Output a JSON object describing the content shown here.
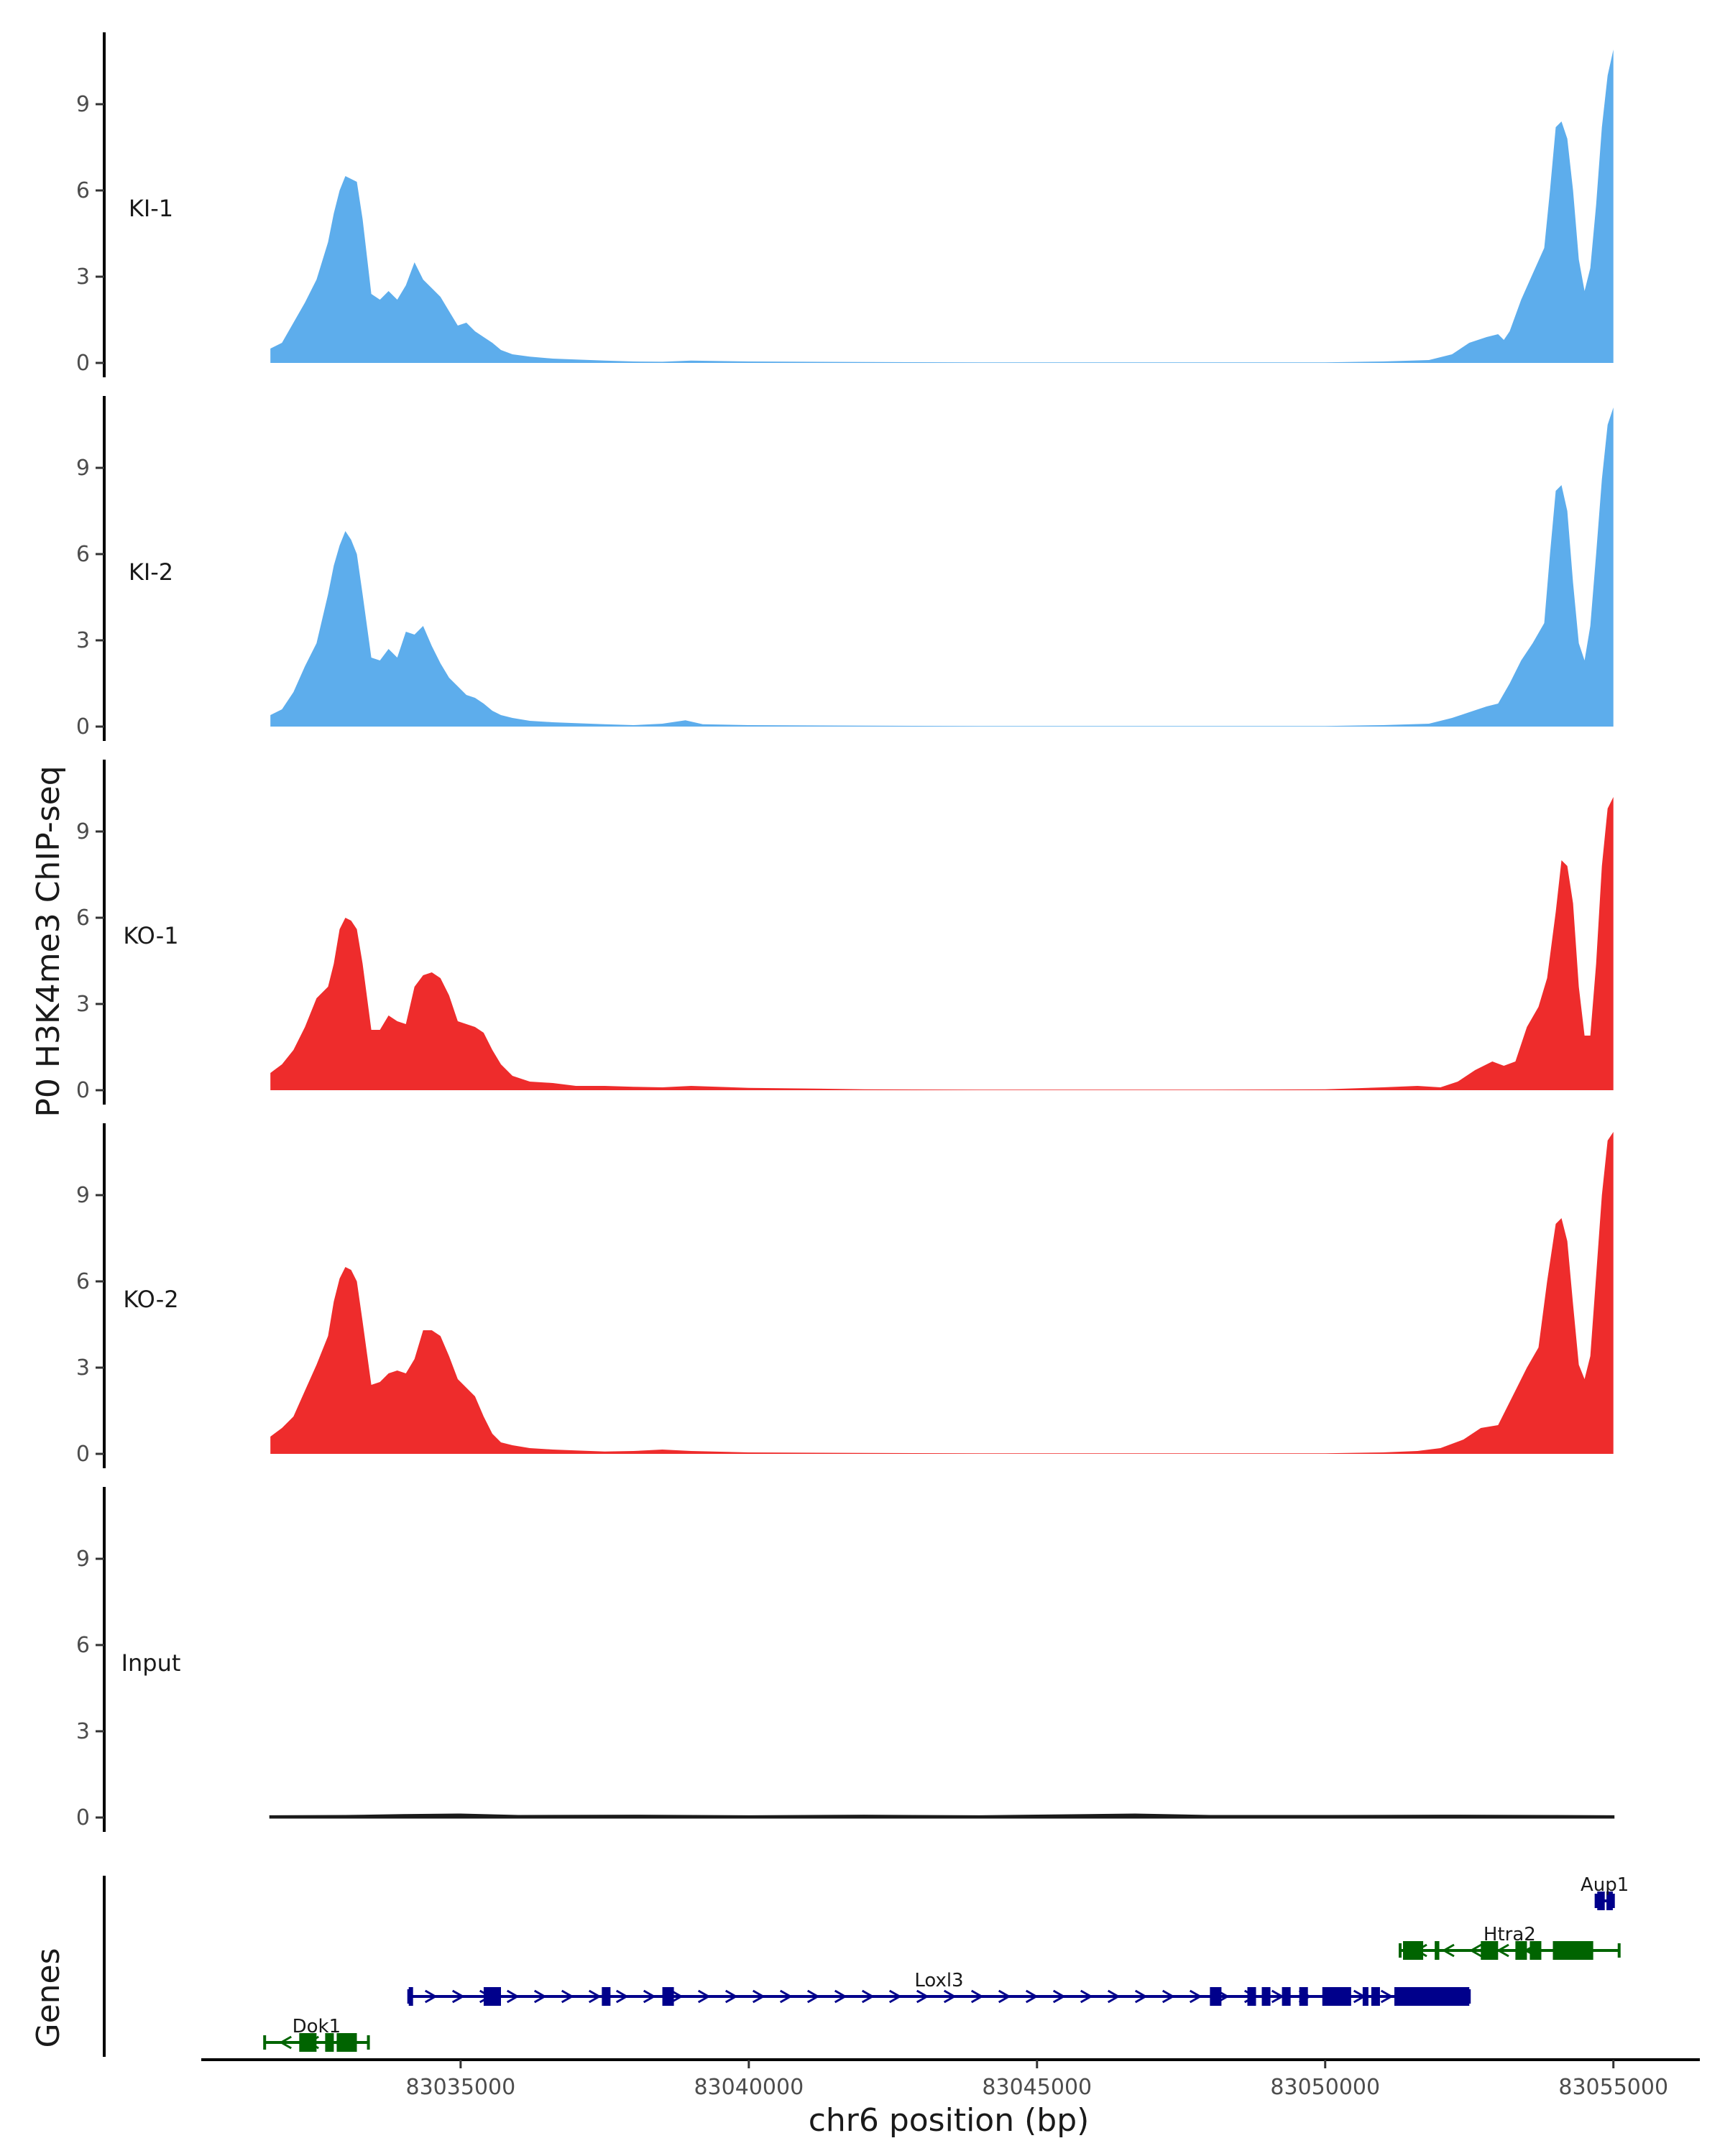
{
  "chart_data": {
    "type": "area",
    "xlabel": "chr6 position (bp)",
    "ylabel": "P0 H3K4me3 ChIP-seq",
    "genes_label": "Genes",
    "xlim": [
      83030500,
      83056500
    ],
    "x_ticks": [
      83035000,
      83040000,
      83045000,
      83050000,
      83055000
    ],
    "x_tick_labels": [
      "83035000",
      "83040000",
      "83045000",
      "83050000",
      "83055000"
    ],
    "ylim": [
      0,
      11.5
    ],
    "y_ticks": [
      0,
      3,
      6,
      9
    ],
    "y_tick_labels": [
      "0",
      "3",
      "6",
      "9"
    ],
    "colors": {
      "KI": "#5dadec",
      "KO": "#ee2c2c",
      "Input": "#1a1a1a",
      "gene_plus": "#00008b",
      "gene_minus": "#006400"
    },
    "tracks": [
      {
        "name": "KI-1",
        "color": "#5dadec",
        "x": [
          83031700,
          83031900,
          83032100,
          83032300,
          83032500,
          83032700,
          83032800,
          83032900,
          83033000,
          83033100,
          83033200,
          83033300,
          83033450,
          83033600,
          83033750,
          83033900,
          83034050,
          83034200,
          83034350,
          83034500,
          83034650,
          83034800,
          83034950,
          83035100,
          83035250,
          83035400,
          83035550,
          83035700,
          83035900,
          83036200,
          83036600,
          83037000,
          83037500,
          83038000,
          83038500,
          83039000,
          83040000,
          83042000,
          83044000,
          83046000,
          83048000,
          83050000,
          83051000,
          83051800,
          83052200,
          83052500,
          83052800,
          83053000,
          83053100,
          83053200,
          83053400,
          83053600,
          83053800,
          83053900,
          83054000,
          83054100,
          83054200,
          83054300,
          83054400,
          83054500,
          83054600,
          83054700,
          83054800,
          83054900,
          83055000
        ],
        "values": [
          0.5,
          0.7,
          1.4,
          2.1,
          2.9,
          4.2,
          5.2,
          6.0,
          6.5,
          6.4,
          6.3,
          5.0,
          2.4,
          2.2,
          2.5,
          2.2,
          2.7,
          3.5,
          2.9,
          2.6,
          2.3,
          1.8,
          1.3,
          1.4,
          1.1,
          0.9,
          0.7,
          0.45,
          0.3,
          0.22,
          0.15,
          0.12,
          0.08,
          0.05,
          0.04,
          0.08,
          0.05,
          0.03,
          0.02,
          0.02,
          0.02,
          0.02,
          0.05,
          0.1,
          0.3,
          0.7,
          0.9,
          1.0,
          0.8,
          1.1,
          2.2,
          3.1,
          4.0,
          6.0,
          8.2,
          8.4,
          7.8,
          6.0,
          3.6,
          2.5,
          3.3,
          5.5,
          8.2,
          10.0,
          10.9
        ]
      },
      {
        "name": "KI-2",
        "color": "#5dadec",
        "x": [
          83031700,
          83031900,
          83032100,
          83032300,
          83032500,
          83032700,
          83032800,
          83032900,
          83033000,
          83033100,
          83033200,
          83033300,
          83033450,
          83033600,
          83033750,
          83033900,
          83034050,
          83034200,
          83034350,
          83034500,
          83034650,
          83034800,
          83034950,
          83035100,
          83035250,
          83035400,
          83035550,
          83035700,
          83035900,
          83036200,
          83036600,
          83037000,
          83037500,
          83038000,
          83038500,
          83038900,
          83039200,
          83040000,
          83042000,
          83044000,
          83046000,
          83048000,
          83050000,
          83051000,
          83051800,
          83052200,
          83052500,
          83052800,
          83053000,
          83053200,
          83053400,
          83053600,
          83053800,
          83053900,
          83054000,
          83054100,
          83054200,
          83054300,
          83054400,
          83054500,
          83054600,
          83054700,
          83054800,
          83054900,
          83055000
        ],
        "values": [
          0.4,
          0.6,
          1.2,
          2.1,
          2.9,
          4.6,
          5.6,
          6.3,
          6.8,
          6.5,
          6.0,
          4.6,
          2.4,
          2.3,
          2.7,
          2.4,
          3.3,
          3.2,
          3.5,
          2.8,
          2.2,
          1.7,
          1.4,
          1.1,
          1.0,
          0.8,
          0.55,
          0.4,
          0.3,
          0.2,
          0.15,
          0.12,
          0.08,
          0.05,
          0.1,
          0.22,
          0.08,
          0.05,
          0.03,
          0.02,
          0.02,
          0.02,
          0.02,
          0.05,
          0.1,
          0.3,
          0.5,
          0.7,
          0.8,
          1.5,
          2.3,
          2.9,
          3.6,
          6.0,
          8.2,
          8.4,
          7.5,
          5.0,
          2.9,
          2.3,
          3.5,
          6.0,
          8.6,
          10.5,
          11.1
        ]
      },
      {
        "name": "KO-1",
        "color": "#ee2c2c",
        "x": [
          83031700,
          83031900,
          83032100,
          83032300,
          83032500,
          83032700,
          83032800,
          83032900,
          83033000,
          83033100,
          83033200,
          83033300,
          83033450,
          83033600,
          83033750,
          83033900,
          83034050,
          83034200,
          83034350,
          83034500,
          83034650,
          83034800,
          83034950,
          83035100,
          83035250,
          83035400,
          83035550,
          83035700,
          83035900,
          83036200,
          83036600,
          83037000,
          83037500,
          83038000,
          83038500,
          83039000,
          83040000,
          83041000,
          83042000,
          83044000,
          83046000,
          83048000,
          83050000,
          83051000,
          83051600,
          83052000,
          83052300,
          83052600,
          83052900,
          83053100,
          83053300,
          83053500,
          83053700,
          83053850,
          83054000,
          83054100,
          83054200,
          83054300,
          83054400,
          83054500,
          83054600,
          83054700,
          83054800,
          83054900,
          83055000
        ],
        "values": [
          0.6,
          0.9,
          1.4,
          2.2,
          3.2,
          3.6,
          4.4,
          5.6,
          6.0,
          5.9,
          5.6,
          4.4,
          2.1,
          2.1,
          2.6,
          2.4,
          2.3,
          3.6,
          4.0,
          4.1,
          3.9,
          3.3,
          2.4,
          2.3,
          2.2,
          2.0,
          1.4,
          0.9,
          0.5,
          0.3,
          0.25,
          0.15,
          0.15,
          0.12,
          0.1,
          0.15,
          0.08,
          0.06,
          0.03,
          0.02,
          0.02,
          0.02,
          0.03,
          0.1,
          0.15,
          0.1,
          0.3,
          0.7,
          1.0,
          0.85,
          1.0,
          2.2,
          2.9,
          3.9,
          6.2,
          8.0,
          7.8,
          6.5,
          3.6,
          1.9,
          1.9,
          4.4,
          7.8,
          9.8,
          10.2
        ]
      },
      {
        "name": "KO-2",
        "color": "#ee2c2c",
        "x": [
          83031700,
          83031900,
          83032100,
          83032300,
          83032500,
          83032700,
          83032800,
          83032900,
          83033000,
          83033100,
          83033200,
          83033300,
          83033450,
          83033600,
          83033750,
          83033900,
          83034050,
          83034200,
          83034350,
          83034500,
          83034650,
          83034800,
          83034950,
          83035100,
          83035250,
          83035400,
          83035550,
          83035700,
          83035900,
          83036200,
          83036600,
          83037000,
          83037500,
          83038000,
          83038500,
          83039000,
          83040000,
          83042000,
          83044000,
          83046000,
          83048000,
          83050000,
          83051000,
          83051600,
          83052000,
          83052400,
          83052700,
          83053000,
          83053300,
          83053500,
          83053700,
          83053850,
          83054000,
          83054100,
          83054200,
          83054300,
          83054400,
          83054500,
          83054600,
          83054700,
          83054800,
          83054900,
          83055000
        ],
        "values": [
          0.6,
          0.9,
          1.3,
          2.2,
          3.1,
          4.1,
          5.3,
          6.1,
          6.5,
          6.4,
          6.0,
          4.6,
          2.4,
          2.5,
          2.8,
          2.9,
          2.8,
          3.3,
          4.3,
          4.3,
          4.1,
          3.4,
          2.6,
          2.3,
          2.0,
          1.3,
          0.7,
          0.4,
          0.3,
          0.2,
          0.15,
          0.12,
          0.08,
          0.1,
          0.15,
          0.1,
          0.05,
          0.03,
          0.02,
          0.02,
          0.02,
          0.02,
          0.05,
          0.1,
          0.2,
          0.5,
          0.9,
          1.0,
          2.2,
          3.0,
          3.7,
          6.0,
          8.0,
          8.2,
          7.4,
          5.2,
          3.1,
          2.6,
          3.4,
          6.2,
          9.0,
          10.9,
          11.2
        ]
      },
      {
        "name": "Input",
        "color": "#1a1a1a",
        "x": [
          83031700,
          83033000,
          83034000,
          83035000,
          83036000,
          83038000,
          83040000,
          83042000,
          83044000,
          83046700,
          83048000,
          83050000,
          83052000,
          83054000,
          83055000
        ],
        "values": [
          0.04,
          0.05,
          0.08,
          0.1,
          0.05,
          0.06,
          0.04,
          0.06,
          0.04,
          0.1,
          0.05,
          0.05,
          0.06,
          0.05,
          0.04
        ]
      }
    ],
    "genes": [
      {
        "name": "Aup1",
        "strand": "+",
        "color": "#00008b",
        "row": 0,
        "start": 83054700,
        "end": 83055000,
        "exons": [
          [
            83054720,
            83054850
          ],
          [
            83054880,
            83054990
          ]
        ]
      },
      {
        "name": "Htra2",
        "strand": "-",
        "color": "#006400",
        "row": 1,
        "start": 83051300,
        "end": 83055100,
        "exons": [
          [
            83051350,
            83051700
          ],
          [
            83051900,
            83051980
          ],
          [
            83052700,
            83053000
          ],
          [
            83053300,
            83053500
          ],
          [
            83053550,
            83053750
          ],
          [
            83053950,
            83054650
          ]
        ]
      },
      {
        "name": "Loxl3",
        "strand": "+",
        "color": "#00008b",
        "row": 2,
        "start": 83034100,
        "end": 83052500,
        "exons": [
          [
            83034100,
            83034170
          ],
          [
            83035400,
            83035700
          ],
          [
            83037450,
            83037600
          ],
          [
            83038500,
            83038700
          ],
          [
            83048000,
            83048200
          ],
          [
            83048650,
            83048800
          ],
          [
            83048900,
            83049050
          ],
          [
            83049250,
            83049400
          ],
          [
            83049550,
            83049700
          ],
          [
            83049950,
            83050450
          ],
          [
            83050650,
            83050750
          ],
          [
            83050800,
            83050950
          ],
          [
            83051200,
            83052500
          ]
        ]
      },
      {
        "name": "Dok1",
        "strand": "-",
        "color": "#006400",
        "row": 3,
        "start": 83031600,
        "end": 83033400,
        "exons": [
          [
            83032200,
            83032500
          ],
          [
            83032650,
            83032800
          ],
          [
            83032850,
            83033200
          ]
        ]
      }
    ]
  }
}
